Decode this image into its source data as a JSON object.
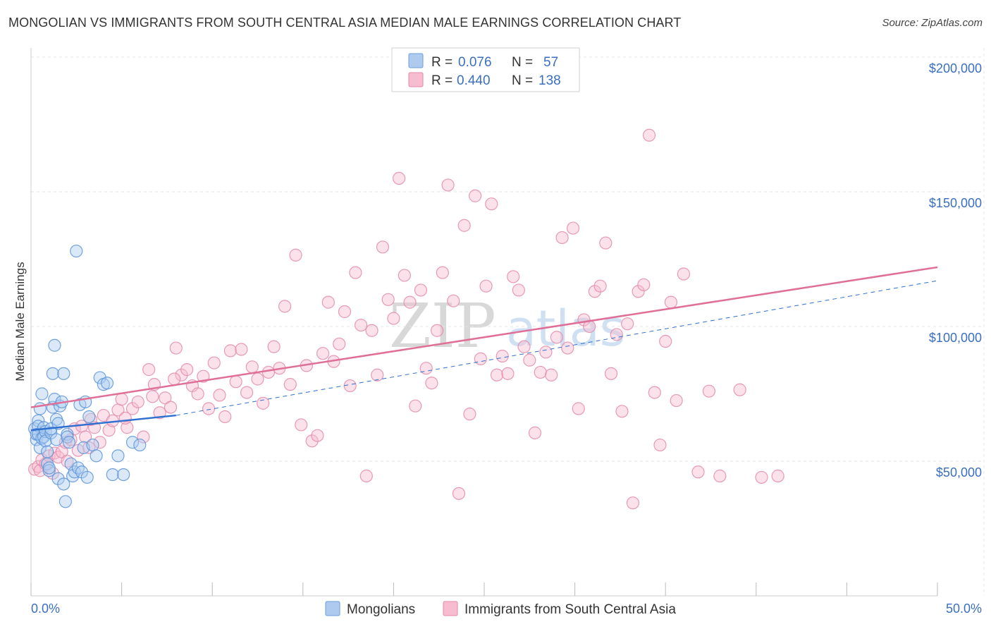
{
  "title": "MONGOLIAN VS IMMIGRANTS FROM SOUTH CENTRAL ASIA MEDIAN MALE EARNINGS CORRELATION CHART",
  "source": "Source: ZipAtlas.com",
  "watermark": {
    "part1": "ZIP",
    "part2": "atlas"
  },
  "legend": {
    "rows": [
      {
        "r_label": "R = ",
        "r_value": "0.076",
        "n_label": "N = ",
        "n_value": "57",
        "color": "#aecbef",
        "stroke": "#6c9ddb"
      },
      {
        "r_label": "R = ",
        "r_value": "0.440",
        "n_label": "N = ",
        "n_value": "138",
        "color": "#f7bcd0",
        "stroke": "#e38aaa"
      }
    ]
  },
  "bottom_legend": [
    {
      "label": "Mongolians",
      "color": "#aecbef",
      "stroke": "#6c9ddb"
    },
    {
      "label": "Immigrants from South Central Asia",
      "color": "#f7bcd0",
      "stroke": "#e38aaa"
    }
  ],
  "chart_data": {
    "type": "scatter",
    "title": "MONGOLIAN VS IMMIGRANTS FROM SOUTH CENTRAL ASIA MEDIAN MALE EARNINGS CORRELATION CHART",
    "ylabel": "Median Male Earnings",
    "xlabel": "",
    "xlim": [
      0,
      50
    ],
    "ylim": [
      0,
      210000
    ],
    "x_tick_labels": [
      "0.0%",
      "50.0%"
    ],
    "y_ticks": [
      50000,
      100000,
      150000,
      200000
    ],
    "y_tick_labels": [
      "$50,000",
      "$100,000",
      "$150,000",
      "$200,000"
    ],
    "grid": true,
    "colors": {
      "mongolians": "#5b93d8",
      "immigrants": "#e892b2",
      "mongolians_line": "#2f6fcf",
      "immigrants_line": "#e06f98"
    },
    "series": [
      {
        "name": "Mongolians",
        "trend": {
          "solid": [
            [
              0.0,
              61500
            ],
            [
              8.0,
              67000
            ]
          ],
          "dashed": [
            [
              8.0,
              67000
            ],
            [
              50.0,
              117000
            ]
          ]
        },
        "points": [
          [
            0.2,
            62000
          ],
          [
            0.3,
            58000
          ],
          [
            0.3,
            60000
          ],
          [
            0.4,
            65000
          ],
          [
            0.4,
            63000
          ],
          [
            0.4,
            60000
          ],
          [
            0.5,
            55000
          ],
          [
            0.5,
            69500
          ],
          [
            0.6,
            75000
          ],
          [
            0.6,
            58500
          ],
          [
            0.7,
            59000
          ],
          [
            0.7,
            62500
          ],
          [
            0.8,
            61000
          ],
          [
            0.8,
            57500
          ],
          [
            0.9,
            49000
          ],
          [
            0.9,
            53500
          ],
          [
            1.0,
            46500
          ],
          [
            1.0,
            47500
          ],
          [
            1.1,
            60500
          ],
          [
            1.1,
            62000
          ],
          [
            1.2,
            70000
          ],
          [
            1.2,
            82500
          ],
          [
            1.3,
            93000
          ],
          [
            1.3,
            73000
          ],
          [
            1.4,
            65500
          ],
          [
            1.4,
            58000
          ],
          [
            1.5,
            64000
          ],
          [
            1.5,
            43500
          ],
          [
            1.6,
            70500
          ],
          [
            1.7,
            72000
          ],
          [
            1.8,
            82500
          ],
          [
            1.8,
            41500
          ],
          [
            1.9,
            35000
          ],
          [
            2.0,
            60000
          ],
          [
            2.0,
            59000
          ],
          [
            2.1,
            57000
          ],
          [
            2.2,
            49000
          ],
          [
            2.3,
            44500
          ],
          [
            2.4,
            46000
          ],
          [
            2.5,
            128000
          ],
          [
            2.6,
            47500
          ],
          [
            2.7,
            71000
          ],
          [
            2.8,
            46000
          ],
          [
            2.9,
            55000
          ],
          [
            3.0,
            72000
          ],
          [
            3.1,
            44000
          ],
          [
            3.2,
            66500
          ],
          [
            3.4,
            56000
          ],
          [
            3.6,
            52000
          ],
          [
            3.8,
            81000
          ],
          [
            4.0,
            78500
          ],
          [
            4.2,
            79000
          ],
          [
            4.5,
            45000
          ],
          [
            4.8,
            52000
          ],
          [
            5.1,
            45000
          ],
          [
            5.6,
            57000
          ],
          [
            6.0,
            56000
          ]
        ]
      },
      {
        "name": "Immigrants from South Central Asia",
        "trend": {
          "solid": [
            [
              0.0,
              70000
            ],
            [
              50.0,
              122000
            ]
          ]
        },
        "points": [
          [
            0.2,
            47000
          ],
          [
            0.4,
            48000
          ],
          [
            0.5,
            46500
          ],
          [
            0.6,
            50500
          ],
          [
            0.8,
            49000
          ],
          [
            1.0,
            52000
          ],
          [
            1.2,
            45500
          ],
          [
            1.3,
            53000
          ],
          [
            1.5,
            51500
          ],
          [
            1.7,
            53500
          ],
          [
            1.9,
            57000
          ],
          [
            2.0,
            50000
          ],
          [
            2.2,
            58000
          ],
          [
            2.4,
            62000
          ],
          [
            2.6,
            54000
          ],
          [
            2.8,
            63000
          ],
          [
            3.0,
            59000
          ],
          [
            3.2,
            55000
          ],
          [
            3.5,
            62500
          ],
          [
            3.8,
            57000
          ],
          [
            4.0,
            67000
          ],
          [
            4.3,
            61500
          ],
          [
            4.5,
            65000
          ],
          [
            4.8,
            69000
          ],
          [
            5.0,
            73000
          ],
          [
            5.3,
            62500
          ],
          [
            5.6,
            69500
          ],
          [
            5.9,
            72000
          ],
          [
            6.2,
            59000
          ],
          [
            6.5,
            84000
          ],
          [
            6.8,
            78500
          ],
          [
            7.1,
            68000
          ],
          [
            7.4,
            73500
          ],
          [
            7.7,
            70000
          ],
          [
            8.0,
            92000
          ],
          [
            8.3,
            82000
          ],
          [
            8.6,
            84000
          ],
          [
            8.9,
            78000
          ],
          [
            9.2,
            75000
          ],
          [
            9.5,
            81500
          ],
          [
            9.8,
            69500
          ],
          [
            10.1,
            86500
          ],
          [
            10.4,
            74500
          ],
          [
            10.7,
            66500
          ],
          [
            11.0,
            91000
          ],
          [
            11.3,
            79500
          ],
          [
            11.6,
            91500
          ],
          [
            11.9,
            75500
          ],
          [
            12.2,
            85000
          ],
          [
            12.5,
            80500
          ],
          [
            12.8,
            71500
          ],
          [
            13.1,
            83000
          ],
          [
            13.4,
            92500
          ],
          [
            13.7,
            84500
          ],
          [
            14.0,
            107500
          ],
          [
            14.3,
            78500
          ],
          [
            14.6,
            126500
          ],
          [
            14.9,
            63500
          ],
          [
            15.2,
            85500
          ],
          [
            15.5,
            57500
          ],
          [
            15.8,
            59500
          ],
          [
            16.1,
            90000
          ],
          [
            16.4,
            109000
          ],
          [
            16.7,
            87000
          ],
          [
            17.0,
            93500
          ],
          [
            17.3,
            105500
          ],
          [
            17.6,
            78000
          ],
          [
            17.9,
            120000
          ],
          [
            18.2,
            100500
          ],
          [
            18.5,
            44500
          ],
          [
            18.8,
            98500
          ],
          [
            19.1,
            82000
          ],
          [
            19.4,
            129500
          ],
          [
            19.7,
            110000
          ],
          [
            20.0,
            103000
          ],
          [
            20.3,
            155000
          ],
          [
            20.6,
            119000
          ],
          [
            20.9,
            109000
          ],
          [
            21.2,
            70500
          ],
          [
            21.5,
            113500
          ],
          [
            21.8,
            84500
          ],
          [
            22.1,
            79000
          ],
          [
            22.4,
            98500
          ],
          [
            22.7,
            120000
          ],
          [
            23.0,
            152500
          ],
          [
            23.3,
            109500
          ],
          [
            23.6,
            38000
          ],
          [
            23.9,
            137500
          ],
          [
            24.2,
            67500
          ],
          [
            24.5,
            148500
          ],
          [
            24.8,
            88000
          ],
          [
            25.1,
            115000
          ],
          [
            25.4,
            145500
          ],
          [
            25.7,
            82000
          ],
          [
            26.0,
            89000
          ],
          [
            26.3,
            82500
          ],
          [
            26.6,
            118500
          ],
          [
            26.9,
            113500
          ],
          [
            27.2,
            92500
          ],
          [
            27.5,
            87500
          ],
          [
            27.8,
            60500
          ],
          [
            28.1,
            83000
          ],
          [
            28.4,
            90500
          ],
          [
            28.7,
            82000
          ],
          [
            29.0,
            96000
          ],
          [
            29.3,
            133000
          ],
          [
            29.6,
            92000
          ],
          [
            29.9,
            136500
          ],
          [
            30.2,
            69500
          ],
          [
            30.5,
            102500
          ],
          [
            30.8,
            100000
          ],
          [
            31.1,
            113000
          ],
          [
            31.4,
            115000
          ],
          [
            31.7,
            131000
          ],
          [
            32.0,
            82500
          ],
          [
            32.3,
            97000
          ],
          [
            32.6,
            68500
          ],
          [
            32.9,
            101000
          ],
          [
            33.2,
            34500
          ],
          [
            33.5,
            113000
          ],
          [
            33.8,
            115500
          ],
          [
            34.1,
            171000
          ],
          [
            34.4,
            75500
          ],
          [
            34.7,
            56000
          ],
          [
            35.0,
            94500
          ],
          [
            35.3,
            109000
          ],
          [
            35.6,
            72500
          ],
          [
            36.0,
            119500
          ],
          [
            36.8,
            46000
          ],
          [
            37.4,
            76000
          ],
          [
            38.0,
            44500
          ],
          [
            39.1,
            76500
          ],
          [
            40.3,
            44000
          ],
          [
            41.2,
            44500
          ],
          [
            5.2,
            66000
          ],
          [
            6.7,
            74000
          ],
          [
            7.9,
            80500
          ],
          [
            3.3,
            65500
          ]
        ]
      }
    ]
  }
}
